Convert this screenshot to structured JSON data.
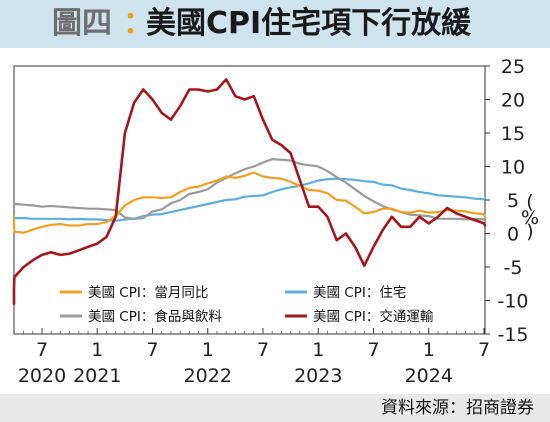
{
  "header": {
    "label": "圖四",
    "colon": "：",
    "title": "美國CPI住宅項下行放緩"
  },
  "source": "資料來源：招商證券",
  "colors": {
    "header_bg": "#cfe3ee",
    "overall": "#f0a020",
    "housing": "#5aaee0",
    "food": "#9a9a9a",
    "transport": "#a3161c"
  },
  "chart_data": {
    "type": "line",
    "ylabel": "%",
    "ylim": [
      -15,
      25
    ],
    "yticks": [
      25,
      20,
      15,
      10,
      5,
      0,
      -5,
      -10,
      -15
    ],
    "xticks": [
      {
        "label": "7",
        "x": "2020-07"
      },
      {
        "label": "1",
        "x": "2021-01"
      },
      {
        "label": "7",
        "x": "2021-07"
      },
      {
        "label": "1",
        "x": "2022-01"
      },
      {
        "label": "7",
        "x": "2022-07"
      },
      {
        "label": "1",
        "x": "2023-01"
      },
      {
        "label": "7",
        "x": "2023-07"
      },
      {
        "label": "1",
        "x": "2024-01"
      },
      {
        "label": "7",
        "x": "2024-07"
      }
    ],
    "year_labels": [
      {
        "label": "2020",
        "x": "2020-07"
      },
      {
        "label": "2021",
        "x": "2021-01"
      },
      {
        "label": "2022",
        "x": "2022-01"
      },
      {
        "label": "2023",
        "x": "2023-01"
      },
      {
        "label": "2024",
        "x": "2024-01"
      }
    ],
    "x": [
      "2020-01",
      "2020-02",
      "2020-03",
      "2020-04",
      "2020-05",
      "2020-06",
      "2020-07",
      "2020-08",
      "2020-09",
      "2020-10",
      "2020-11",
      "2020-12",
      "2021-01",
      "2021-02",
      "2021-03",
      "2021-04",
      "2021-05",
      "2021-06",
      "2021-07",
      "2021-08",
      "2021-09",
      "2021-10",
      "2021-11",
      "2021-12",
      "2022-01",
      "2022-02",
      "2022-03",
      "2022-04",
      "2022-05",
      "2022-06",
      "2022-07",
      "2022-08",
      "2022-09",
      "2022-10",
      "2022-11",
      "2022-12",
      "2023-01",
      "2023-02",
      "2023-03",
      "2023-04",
      "2023-05",
      "2023-06",
      "2023-07",
      "2023-08",
      "2023-09",
      "2023-10",
      "2023-11",
      "2023-12",
      "2024-01",
      "2024-02",
      "2024-03",
      "2024-04",
      "2024-05",
      "2024-06",
      "2024-07",
      "2024-08"
    ],
    "series": [
      {
        "name": "美國 CPI：當月同比",
        "key": "overall",
        "values": [
          2.5,
          2.3,
          1.5,
          0.3,
          0.1,
          0.6,
          1.0,
          1.3,
          1.4,
          1.2,
          1.2,
          1.4,
          1.4,
          1.7,
          2.6,
          4.2,
          5.0,
          5.4,
          5.4,
          5.3,
          5.4,
          6.2,
          6.8,
          7.0,
          7.5,
          7.9,
          8.5,
          8.3,
          8.6,
          9.1,
          8.5,
          8.3,
          8.2,
          7.7,
          7.1,
          6.5,
          6.4,
          6.0,
          5.0,
          4.9,
          4.0,
          3.0,
          3.2,
          3.7,
          3.7,
          3.2,
          3.1,
          3.4,
          3.1,
          3.2,
          3.5,
          3.4,
          3.3,
          3.0,
          2.9,
          2.5
        ]
      },
      {
        "name": "美國 CPI：住宅",
        "key": "housing",
        "values": [
          2.6,
          2.5,
          2.4,
          2.3,
          2.3,
          2.2,
          2.2,
          2.2,
          2.2,
          2.1,
          2.2,
          2.1,
          2.1,
          2.0,
          1.9,
          2.1,
          2.2,
          2.6,
          2.8,
          2.9,
          3.2,
          3.5,
          3.8,
          4.1,
          4.4,
          4.7,
          5.0,
          5.1,
          5.5,
          5.6,
          5.7,
          6.2,
          6.6,
          6.9,
          7.1,
          7.5,
          7.9,
          8.1,
          8.2,
          8.1,
          8.0,
          7.8,
          7.7,
          7.3,
          7.2,
          6.7,
          6.5,
          6.2,
          6.0,
          5.7,
          5.6,
          5.5,
          5.4,
          5.2,
          5.1,
          5.2
        ]
      },
      {
        "name": "美國 CPI：食品與飲料",
        "key": "food",
        "values": [
          3.8,
          4.1,
          4.6,
          4.4,
          4.3,
          4.2,
          4.0,
          4.1,
          4.0,
          3.9,
          3.8,
          3.7,
          3.7,
          3.6,
          3.5,
          2.4,
          2.2,
          2.3,
          3.3,
          3.6,
          4.5,
          5.0,
          5.9,
          6.2,
          6.6,
          7.6,
          8.3,
          9.0,
          9.6,
          10.0,
          10.6,
          11.1,
          11.0,
          10.9,
          10.4,
          10.2,
          10.0,
          9.3,
          8.4,
          7.6,
          6.6,
          5.6,
          4.8,
          4.1,
          3.6,
          3.2,
          2.8,
          2.7,
          2.6,
          2.2,
          2.2,
          2.2,
          2.1,
          2.2,
          2.1,
          2.1
        ]
      },
      {
        "name": "美國 CPI：交通運輸",
        "key": "transport",
        "values": [
          -9.5,
          -10.5,
          -8.0,
          -6.5,
          -5.0,
          -4.0,
          -3.2,
          -2.8,
          -3.2,
          -3.0,
          -2.5,
          -2.0,
          -1.5,
          -0.5,
          2.5,
          15.0,
          19.5,
          21.5,
          20.0,
          18.0,
          17.0,
          19.0,
          21.5,
          21.5,
          21.2,
          21.5,
          23.0,
          20.5,
          20.0,
          20.5,
          17.0,
          14.0,
          13.2,
          12.0,
          8.0,
          4.0,
          4.0,
          2.5,
          -1.0,
          0.0,
          -2.0,
          -4.8,
          -2.0,
          0.5,
          2.5,
          1.0,
          1.0,
          2.5,
          1.5,
          2.5,
          3.8,
          3.0,
          2.5,
          2.0,
          1.5,
          1.2
        ]
      }
    ],
    "legend": {
      "placement": "bottom-left inside plot",
      "order": [
        "overall",
        "housing",
        "food",
        "transport"
      ]
    }
  }
}
